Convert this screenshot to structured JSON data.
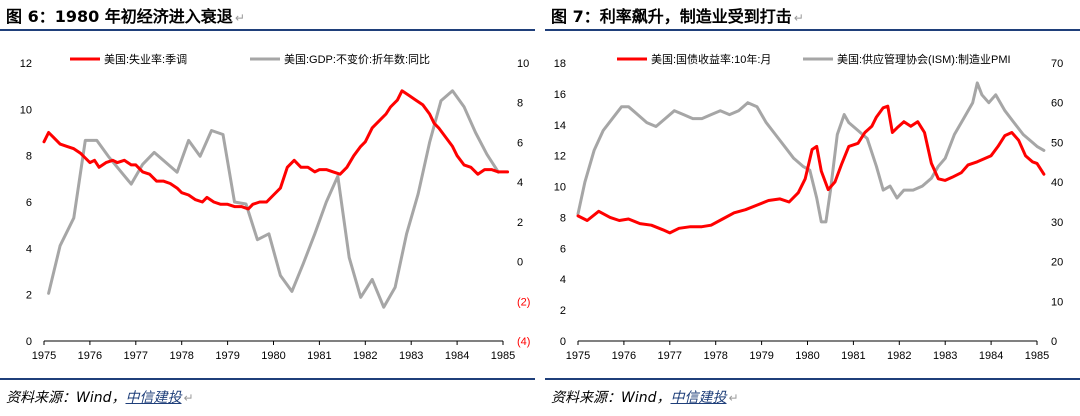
{
  "charts": [
    {
      "title": "图 6：1980 年初经济进入衰退",
      "source_prefix": "资料来源：Wind，",
      "source_brand": "中信建投",
      "para_mark": "↵"
    },
    {
      "title": "图 7：利率飙升，制造业受到打击",
      "source_prefix": "资料来源：Wind，",
      "source_brand": "中信建投",
      "para_mark": "↵"
    }
  ],
  "chart_data": [
    {
      "type": "line",
      "x_ticks": [
        "1975",
        "1976",
        "1977",
        "1978",
        "1979",
        "1980",
        "1981",
        "1982",
        "1983",
        "1984",
        "1985"
      ],
      "xlim": [
        1975,
        1985
      ],
      "y_left": {
        "ylim": [
          0,
          12
        ],
        "ticks": [
          "0",
          "2",
          "4",
          "6",
          "8",
          "10",
          "12"
        ]
      },
      "y_right": {
        "ylim": [
          -4,
          10
        ],
        "ticks": [
          "(4)",
          "(2)",
          "0",
          "2",
          "4",
          "6",
          "8",
          "10"
        ],
        "negative_color": "#ff0000"
      },
      "grid": false,
      "legend": "top",
      "series": [
        {
          "name": "美国:失业率:季调",
          "axis": "left",
          "color": "#ff0000",
          "points": [
            [
              1975.0,
              8.6
            ],
            [
              1975.1,
              9.0
            ],
            [
              1975.2,
              8.8
            ],
            [
              1975.35,
              8.5
            ],
            [
              1975.5,
              8.4
            ],
            [
              1975.65,
              8.3
            ],
            [
              1975.8,
              8.1
            ],
            [
              1975.9,
              7.9
            ],
            [
              1976.0,
              7.7
            ],
            [
              1976.1,
              7.8
            ],
            [
              1976.2,
              7.5
            ],
            [
              1976.35,
              7.7
            ],
            [
              1976.5,
              7.8
            ],
            [
              1976.6,
              7.7
            ],
            [
              1976.75,
              7.8
            ],
            [
              1976.9,
              7.6
            ],
            [
              1977.0,
              7.6
            ],
            [
              1977.15,
              7.3
            ],
            [
              1977.3,
              7.2
            ],
            [
              1977.45,
              6.9
            ],
            [
              1977.6,
              6.9
            ],
            [
              1977.75,
              6.8
            ],
            [
              1977.9,
              6.6
            ],
            [
              1978.0,
              6.4
            ],
            [
              1978.15,
              6.3
            ],
            [
              1978.3,
              6.1
            ],
            [
              1978.45,
              6.0
            ],
            [
              1978.55,
              6.2
            ],
            [
              1978.7,
              6.0
            ],
            [
              1978.85,
              5.9
            ],
            [
              1979.0,
              5.9
            ],
            [
              1979.15,
              5.8
            ],
            [
              1979.3,
              5.8
            ],
            [
              1979.45,
              5.7
            ],
            [
              1979.55,
              5.9
            ],
            [
              1979.7,
              6.0
            ],
            [
              1979.85,
              6.0
            ],
            [
              1980.0,
              6.3
            ],
            [
              1980.15,
              6.6
            ],
            [
              1980.3,
              7.5
            ],
            [
              1980.45,
              7.8
            ],
            [
              1980.6,
              7.5
            ],
            [
              1980.75,
              7.5
            ],
            [
              1980.9,
              7.3
            ],
            [
              1981.0,
              7.4
            ],
            [
              1981.15,
              7.4
            ],
            [
              1981.3,
              7.3
            ],
            [
              1981.45,
              7.2
            ],
            [
              1981.6,
              7.5
            ],
            [
              1981.75,
              8.0
            ],
            [
              1981.9,
              8.4
            ],
            [
              1982.0,
              8.6
            ],
            [
              1982.15,
              9.2
            ],
            [
              1982.3,
              9.5
            ],
            [
              1982.45,
              9.8
            ],
            [
              1982.55,
              10.1
            ],
            [
              1982.7,
              10.4
            ],
            [
              1982.8,
              10.8
            ],
            [
              1982.95,
              10.6
            ],
            [
              1983.1,
              10.4
            ],
            [
              1983.25,
              10.2
            ],
            [
              1983.4,
              9.8
            ],
            [
              1983.5,
              9.4
            ],
            [
              1983.6,
              9.2
            ],
            [
              1983.75,
              8.8
            ],
            [
              1983.9,
              8.4
            ],
            [
              1984.0,
              8.0
            ],
            [
              1984.15,
              7.6
            ],
            [
              1984.3,
              7.5
            ],
            [
              1984.45,
              7.2
            ],
            [
              1984.6,
              7.4
            ],
            [
              1984.75,
              7.4
            ],
            [
              1984.9,
              7.3
            ],
            [
              1985.0,
              7.3
            ],
            [
              1985.1,
              7.3
            ]
          ]
        },
        {
          "name": "美国:GDP:不变价:折年数:同比",
          "axis": "right",
          "color": "#a6a6a6",
          "points": [
            [
              1975.1,
              -1.6
            ],
            [
              1975.35,
              0.8
            ],
            [
              1975.65,
              2.2
            ],
            [
              1975.9,
              6.1
            ],
            [
              1976.15,
              6.1
            ],
            [
              1976.4,
              5.3
            ],
            [
              1976.65,
              4.6
            ],
            [
              1976.9,
              3.9
            ],
            [
              1977.15,
              4.9
            ],
            [
              1977.4,
              5.5
            ],
            [
              1977.65,
              5.0
            ],
            [
              1977.9,
              4.5
            ],
            [
              1978.15,
              6.1
            ],
            [
              1978.4,
              5.3
            ],
            [
              1978.65,
              6.6
            ],
            [
              1978.9,
              6.4
            ],
            [
              1979.15,
              3.0
            ],
            [
              1979.4,
              2.9
            ],
            [
              1979.65,
              1.1
            ],
            [
              1979.9,
              1.4
            ],
            [
              1980.15,
              -0.7
            ],
            [
              1980.4,
              -1.5
            ],
            [
              1980.65,
              -0.1
            ],
            [
              1980.9,
              1.4
            ],
            [
              1981.15,
              3.0
            ],
            [
              1981.4,
              4.3
            ],
            [
              1981.65,
              0.2
            ],
            [
              1981.9,
              -1.8
            ],
            [
              1982.15,
              -0.9
            ],
            [
              1982.4,
              -2.3
            ],
            [
              1982.65,
              -1.3
            ],
            [
              1982.9,
              1.4
            ],
            [
              1983.15,
              3.4
            ],
            [
              1983.4,
              6.0
            ],
            [
              1983.65,
              8.1
            ],
            [
              1983.9,
              8.6
            ],
            [
              1984.15,
              7.8
            ],
            [
              1984.4,
              6.5
            ],
            [
              1984.65,
              5.4
            ],
            [
              1984.9,
              4.5
            ]
          ]
        }
      ]
    },
    {
      "type": "line",
      "x_ticks": [
        "1975",
        "1976",
        "1977",
        "1978",
        "1979",
        "1980",
        "1981",
        "1982",
        "1983",
        "1984",
        "1985"
      ],
      "xlim": [
        1975,
        1985
      ],
      "y_left": {
        "ylim": [
          0,
          18
        ],
        "ticks": [
          "0",
          "2",
          "4",
          "6",
          "8",
          "10",
          "12",
          "14",
          "16",
          "18"
        ]
      },
      "y_right": {
        "ylim": [
          0,
          70
        ],
        "ticks": [
          "0",
          "10",
          "20",
          "30",
          "40",
          "50",
          "60",
          "70"
        ]
      },
      "grid": false,
      "legend": "top",
      "series": [
        {
          "name": "美国:国债收益率:10年:月",
          "axis": "left",
          "color": "#ff0000",
          "points": [
            [
              1975.0,
              8.1
            ],
            [
              1975.2,
              7.8
            ],
            [
              1975.45,
              8.4
            ],
            [
              1975.7,
              8.0
            ],
            [
              1975.9,
              7.8
            ],
            [
              1976.1,
              7.9
            ],
            [
              1976.35,
              7.6
            ],
            [
              1976.6,
              7.5
            ],
            [
              1976.85,
              7.2
            ],
            [
              1977.0,
              7.0
            ],
            [
              1977.2,
              7.3
            ],
            [
              1977.45,
              7.4
            ],
            [
              1977.7,
              7.4
            ],
            [
              1977.9,
              7.5
            ],
            [
              1978.15,
              7.9
            ],
            [
              1978.4,
              8.3
            ],
            [
              1978.65,
              8.5
            ],
            [
              1978.9,
              8.8
            ],
            [
              1979.15,
              9.1
            ],
            [
              1979.4,
              9.2
            ],
            [
              1979.6,
              9.0
            ],
            [
              1979.8,
              9.6
            ],
            [
              1979.95,
              10.5
            ],
            [
              1980.1,
              12.4
            ],
            [
              1980.2,
              12.6
            ],
            [
              1980.3,
              11.0
            ],
            [
              1980.45,
              9.8
            ],
            [
              1980.6,
              10.3
            ],
            [
              1980.75,
              11.5
            ],
            [
              1980.9,
              12.6
            ],
            [
              1981.1,
              12.8
            ],
            [
              1981.25,
              13.5
            ],
            [
              1981.4,
              13.9
            ],
            [
              1981.5,
              14.5
            ],
            [
              1981.65,
              15.1
            ],
            [
              1981.75,
              15.2
            ],
            [
              1981.85,
              13.5
            ],
            [
              1981.95,
              13.8
            ],
            [
              1982.1,
              14.2
            ],
            [
              1982.25,
              13.9
            ],
            [
              1982.4,
              14.2
            ],
            [
              1982.55,
              13.5
            ],
            [
              1982.7,
              11.5
            ],
            [
              1982.85,
              10.5
            ],
            [
              1983.0,
              10.4
            ],
            [
              1983.15,
              10.6
            ],
            [
              1983.35,
              10.9
            ],
            [
              1983.5,
              11.4
            ],
            [
              1983.7,
              11.6
            ],
            [
              1983.85,
              11.8
            ],
            [
              1984.0,
              12.0
            ],
            [
              1984.15,
              12.6
            ],
            [
              1984.3,
              13.3
            ],
            [
              1984.45,
              13.5
            ],
            [
              1984.6,
              13.0
            ],
            [
              1984.75,
              12.0
            ],
            [
              1984.9,
              11.6
            ],
            [
              1985.0,
              11.5
            ],
            [
              1985.15,
              10.8
            ]
          ]
        },
        {
          "name": "美国:供应管理协会(ISM):制造业PMI",
          "axis": "right",
          "color": "#a6a6a6",
          "points": [
            [
              1975.0,
              32
            ],
            [
              1975.15,
              40
            ],
            [
              1975.35,
              48
            ],
            [
              1975.55,
              53
            ],
            [
              1975.75,
              56
            ],
            [
              1975.95,
              59
            ],
            [
              1976.1,
              59
            ],
            [
              1976.3,
              57
            ],
            [
              1976.5,
              55
            ],
            [
              1976.7,
              54
            ],
            [
              1976.9,
              56
            ],
            [
              1977.1,
              58
            ],
            [
              1977.3,
              57
            ],
            [
              1977.5,
              56
            ],
            [
              1977.7,
              56
            ],
            [
              1977.9,
              57
            ],
            [
              1978.1,
              58
            ],
            [
              1978.3,
              57
            ],
            [
              1978.5,
              58
            ],
            [
              1978.7,
              60
            ],
            [
              1978.9,
              59
            ],
            [
              1979.1,
              55
            ],
            [
              1979.3,
              52
            ],
            [
              1979.5,
              49
            ],
            [
              1979.7,
              46
            ],
            [
              1979.9,
              44
            ],
            [
              1980.05,
              43
            ],
            [
              1980.2,
              36
            ],
            [
              1980.3,
              30
            ],
            [
              1980.4,
              30
            ],
            [
              1980.5,
              38
            ],
            [
              1980.65,
              52
            ],
            [
              1980.8,
              57
            ],
            [
              1980.9,
              55
            ],
            [
              1981.1,
              53
            ],
            [
              1981.3,
              51
            ],
            [
              1981.5,
              44
            ],
            [
              1981.65,
              38
            ],
            [
              1981.8,
              39
            ],
            [
              1981.95,
              36
            ],
            [
              1982.1,
              38
            ],
            [
              1982.3,
              38
            ],
            [
              1982.5,
              39
            ],
            [
              1982.7,
              41
            ],
            [
              1982.85,
              44
            ],
            [
              1983.0,
              46
            ],
            [
              1983.2,
              52
            ],
            [
              1983.4,
              56
            ],
            [
              1983.6,
              60
            ],
            [
              1983.7,
              65
            ],
            [
              1983.8,
              62
            ],
            [
              1983.95,
              60
            ],
            [
              1984.1,
              62
            ],
            [
              1984.3,
              58
            ],
            [
              1984.5,
              55
            ],
            [
              1984.7,
              52
            ],
            [
              1984.9,
              50
            ],
            [
              1985.0,
              49
            ],
            [
              1985.15,
              48
            ]
          ]
        }
      ]
    }
  ]
}
